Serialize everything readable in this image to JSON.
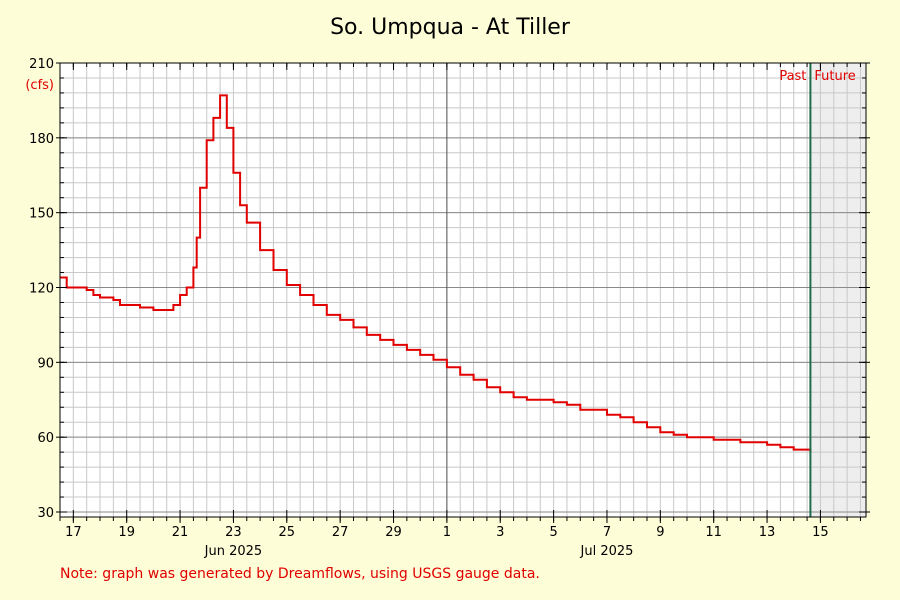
{
  "chart_data": {
    "type": "line",
    "title": "So. Umpqua - At Tiller",
    "ylabel": "(cfs)",
    "ylim": [
      28,
      210
    ],
    "yticks": [
      30,
      60,
      90,
      120,
      150,
      180,
      210
    ],
    "x_start": "2025-06-16T12:00",
    "x_end": "2025-07-16T17:00",
    "xticks": [
      {
        "date": "2025-06-17",
        "label": "17"
      },
      {
        "date": "2025-06-19",
        "label": "19"
      },
      {
        "date": "2025-06-21",
        "label": "21"
      },
      {
        "date": "2025-06-23",
        "label": "23"
      },
      {
        "date": "2025-06-25",
        "label": "25"
      },
      {
        "date": "2025-06-27",
        "label": "27"
      },
      {
        "date": "2025-06-29",
        "label": "29"
      },
      {
        "date": "2025-07-01",
        "label": "1"
      },
      {
        "date": "2025-07-03",
        "label": "3"
      },
      {
        "date": "2025-07-05",
        "label": "5"
      },
      {
        "date": "2025-07-07",
        "label": "7"
      },
      {
        "date": "2025-07-09",
        "label": "9"
      },
      {
        "date": "2025-07-11",
        "label": "11"
      },
      {
        "date": "2025-07-13",
        "label": "13"
      },
      {
        "date": "2025-07-15",
        "label": "15"
      }
    ],
    "month_labels": [
      {
        "date": "2025-06-23",
        "label": "Jun 2025"
      },
      {
        "date": "2025-07-07",
        "label": "Jul 2025"
      }
    ],
    "month_divider": "2025-07-01",
    "now": "2025-07-14T15:00",
    "past_label": "Past",
    "future_label": "Future",
    "grid": true,
    "series": [
      {
        "color": "#e00000",
        "points": [
          [
            "2025-06-16T12:00",
            124
          ],
          [
            "2025-06-16T18:00",
            120
          ],
          [
            "2025-06-17T00:00",
            120
          ],
          [
            "2025-06-17T12:00",
            119
          ],
          [
            "2025-06-17T18:00",
            117
          ],
          [
            "2025-06-18T00:00",
            116
          ],
          [
            "2025-06-18T12:00",
            115
          ],
          [
            "2025-06-18T18:00",
            113
          ],
          [
            "2025-06-19T12:00",
            112
          ],
          [
            "2025-06-20T00:00",
            111
          ],
          [
            "2025-06-20T12:00",
            111
          ],
          [
            "2025-06-20T18:00",
            113
          ],
          [
            "2025-06-21T00:00",
            117
          ],
          [
            "2025-06-21T06:00",
            120
          ],
          [
            "2025-06-21T12:00",
            128
          ],
          [
            "2025-06-21T15:00",
            140
          ],
          [
            "2025-06-21T18:00",
            160
          ],
          [
            "2025-06-22T00:00",
            179
          ],
          [
            "2025-06-22T06:00",
            188
          ],
          [
            "2025-06-22T12:00",
            197
          ],
          [
            "2025-06-22T18:00",
            184
          ],
          [
            "2025-06-23T00:00",
            166
          ],
          [
            "2025-06-23T06:00",
            153
          ],
          [
            "2025-06-23T12:00",
            146
          ],
          [
            "2025-06-24T00:00",
            135
          ],
          [
            "2025-06-24T12:00",
            127
          ],
          [
            "2025-06-25T00:00",
            121
          ],
          [
            "2025-06-25T12:00",
            117
          ],
          [
            "2025-06-26T00:00",
            113
          ],
          [
            "2025-06-26T12:00",
            109
          ],
          [
            "2025-06-27T00:00",
            107
          ],
          [
            "2025-06-27T12:00",
            104
          ],
          [
            "2025-06-28T00:00",
            101
          ],
          [
            "2025-06-28T12:00",
            99
          ],
          [
            "2025-06-29T00:00",
            97
          ],
          [
            "2025-06-29T12:00",
            95
          ],
          [
            "2025-06-30T00:00",
            93
          ],
          [
            "2025-06-30T12:00",
            91
          ],
          [
            "2025-07-01T00:00",
            88
          ],
          [
            "2025-07-01T12:00",
            85
          ],
          [
            "2025-07-02T00:00",
            83
          ],
          [
            "2025-07-02T12:00",
            80
          ],
          [
            "2025-07-03T00:00",
            78
          ],
          [
            "2025-07-03T12:00",
            76
          ],
          [
            "2025-07-04T00:00",
            75
          ],
          [
            "2025-07-04T12:00",
            75
          ],
          [
            "2025-07-05T00:00",
            74
          ],
          [
            "2025-07-05T12:00",
            73
          ],
          [
            "2025-07-06T00:00",
            71
          ],
          [
            "2025-07-06T12:00",
            71
          ],
          [
            "2025-07-07T00:00",
            69
          ],
          [
            "2025-07-07T12:00",
            68
          ],
          [
            "2025-07-08T00:00",
            66
          ],
          [
            "2025-07-08T12:00",
            64
          ],
          [
            "2025-07-09T00:00",
            62
          ],
          [
            "2025-07-09T12:00",
            61
          ],
          [
            "2025-07-10T00:00",
            60
          ],
          [
            "2025-07-10T12:00",
            60
          ],
          [
            "2025-07-11T00:00",
            59
          ],
          [
            "2025-07-11T12:00",
            59
          ],
          [
            "2025-07-12T00:00",
            58
          ],
          [
            "2025-07-12T12:00",
            58
          ],
          [
            "2025-07-13T00:00",
            57
          ],
          [
            "2025-07-13T12:00",
            56
          ],
          [
            "2025-07-14T00:00",
            55
          ],
          [
            "2025-07-14T15:00",
            54
          ]
        ]
      }
    ]
  },
  "footer": {
    "note": "Note: graph was generated by Dreamflows, using USGS gauge data."
  }
}
